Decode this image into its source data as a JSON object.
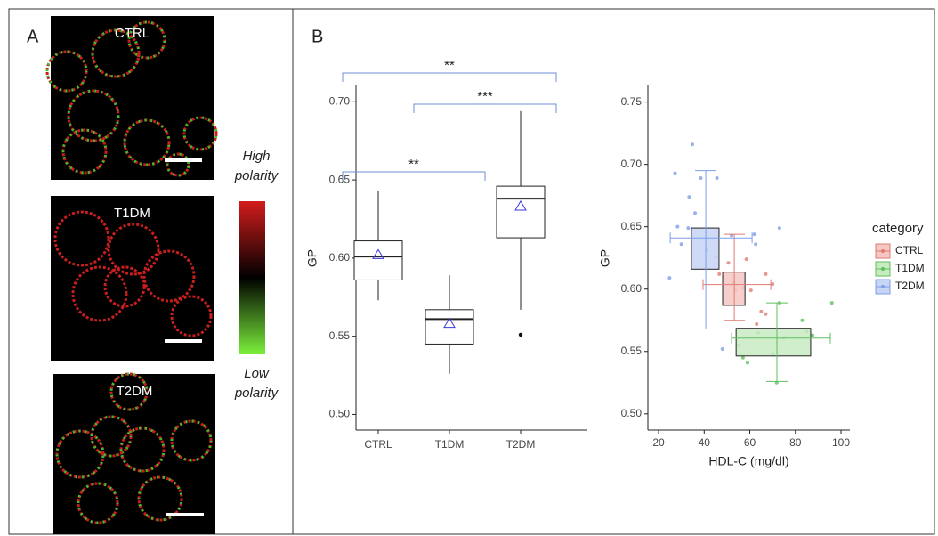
{
  "panel_a": {
    "label": "A",
    "images": [
      "CTRL",
      "T1DM",
      "T2DM"
    ],
    "colorbar_high": [
      "High",
      "polarity"
    ],
    "colorbar_low": [
      "Low",
      "polarity"
    ]
  },
  "panel_b_label": "B",
  "chart_data": [
    {
      "type": "box",
      "ylabel": "GP",
      "categories": [
        "CTRL",
        "T1DM",
        "T2DM"
      ],
      "boxes": [
        {
          "min": 0.573,
          "q1": 0.586,
          "median": 0.601,
          "q3": 0.611,
          "max": 0.643,
          "mean": 0.602,
          "outliers": []
        },
        {
          "min": 0.526,
          "q1": 0.545,
          "median": 0.561,
          "q3": 0.567,
          "max": 0.589,
          "mean": 0.558,
          "outliers": []
        },
        {
          "min": 0.567,
          "q1": 0.613,
          "median": 0.638,
          "q3": 0.646,
          "max": 0.694,
          "mean": 0.633,
          "outliers": [
            0.551
          ]
        }
      ],
      "box_color": "#222222",
      "mean_color": "#3a3adf",
      "bracket_color": "#6f8fd8",
      "annotations": [
        {
          "between": [
            0,
            2
          ],
          "label": "**"
        },
        {
          "between": [
            1,
            2
          ],
          "label": "***"
        },
        {
          "between": [
            0,
            1
          ],
          "label": "**"
        }
      ],
      "ylim": [
        0.49,
        0.711
      ],
      "yticks": [
        {
          "value": 0.5,
          "label": "0.50"
        },
        0.55,
        {
          "value": 0.6,
          "label": "0.60"
        },
        0.65,
        {
          "value": 0.7,
          "label": "0.70"
        }
      ]
    },
    {
      "type": "scatter",
      "xlabel": "HDL-C (mg/dl)",
      "ylabel": "GP",
      "legend_title": "category",
      "legend": "right",
      "series": [
        {
          "name": "CTRL",
          "color": "#e07b73",
          "fill": "#f4c7c3",
          "x": [
            50.6,
            58.5,
            67,
            46.6,
            53,
            57,
            60.5,
            65,
            67,
            63,
            53.7,
            70
          ],
          "values": [
            0.621,
            0.624,
            0.612,
            0.612,
            0.605,
            0.601,
            0.599,
            0.582,
            0.58,
            0.572,
            0.599,
            0.604
          ],
          "box_x": [
            48.1,
            57.9
          ],
          "box_y": [
            0.587,
            0.6136
          ],
          "whisker_x": [
            39.5,
            69.2
          ],
          "whisker_y": [
            0.575,
            0.644
          ],
          "center_x": 53.2,
          "center_y": 0.6036
        },
        {
          "name": "T1DM",
          "color": "#5fbf5f",
          "fill": "#c8ebc2",
          "x": [
            73,
            96,
            83,
            85,
            87.5,
            75,
            63.7,
            55,
            57,
            70,
            59,
            71.8
          ],
          "values": [
            0.589,
            0.589,
            0.575,
            0.566,
            0.563,
            0.561,
            0.565,
            0.555,
            0.545,
            0.548,
            0.541,
            0.525
          ],
          "box_x": [
            54,
            86.7
          ],
          "box_y": [
            0.5464,
            0.5686
          ],
          "whisker_x": [
            52,
            95.3
          ],
          "whisker_y": [
            0.526,
            0.589
          ],
          "center_x": 71.9,
          "center_y": 0.5607
        },
        {
          "name": "T2DM",
          "color": "#7e9ee8",
          "fill": "#c6d4f5",
          "x": [
            34.8,
            27.2,
            38.5,
            45.6,
            33.4,
            36,
            28.3,
            33,
            30,
            24.8,
            41,
            45,
            52,
            62,
            73,
            48,
            62.6
          ],
          "values": [
            0.716,
            0.693,
            0.689,
            0.689,
            0.674,
            0.661,
            0.65,
            0.649,
            0.636,
            0.609,
            0.631,
            0.626,
            0.643,
            0.644,
            0.649,
            0.552,
            0.636
          ],
          "box_x": [
            34.4,
            46.5
          ],
          "box_y": [
            0.616,
            0.649
          ],
          "whisker_x": [
            25.1,
            61
          ],
          "whisker_y": [
            0.568,
            0.695
          ],
          "center_x": 40.7,
          "center_y": 0.641
        }
      ],
      "xlim": [
        15.3,
        103.9
      ],
      "ylim": [
        0.487,
        0.764
      ],
      "xticks": [
        20,
        40,
        60,
        80,
        100
      ],
      "yticks": [
        {
          "value": 0.5,
          "label": "0.50"
        },
        0.55,
        {
          "value": 0.6,
          "label": "0.60"
        },
        0.65,
        {
          "value": 0.7,
          "label": "0.70"
        },
        0.75
      ]
    }
  ]
}
